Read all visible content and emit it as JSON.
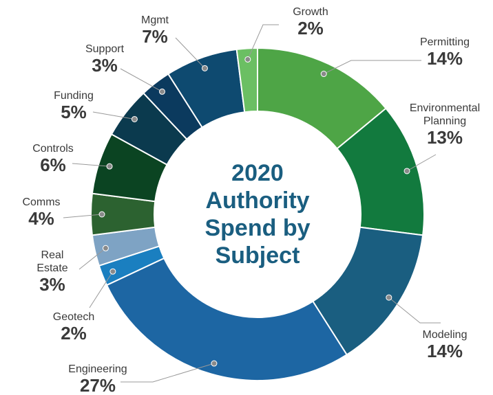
{
  "chart_data": {
    "type": "donut",
    "title": "2020 Authority Spend by Subject",
    "categories": [
      "Permitting",
      "Environmental Planning",
      "Modeling",
      "Engineering",
      "Geotech",
      "Real Estate",
      "Comms",
      "Controls",
      "Funding",
      "Support",
      "Mgmt",
      "Growth"
    ],
    "values": [
      14,
      13,
      14,
      27,
      2,
      3,
      4,
      6,
      5,
      3,
      7,
      2
    ],
    "value_labels": [
      "14%",
      "13%",
      "14%",
      "27%",
      "2%",
      "3%",
      "4%",
      "6%",
      "5%",
      "3%",
      "7%",
      "2%"
    ],
    "colors": [
      "#4ea546",
      "#127a3e",
      "#1a5e80",
      "#1d66a3",
      "#1a7fc0",
      "#7ea3c4",
      "#2c6230",
      "#0b4422",
      "#0b3a4e",
      "#0b3a5e",
      "#0e4a70",
      "#6bbf63"
    ]
  }
}
